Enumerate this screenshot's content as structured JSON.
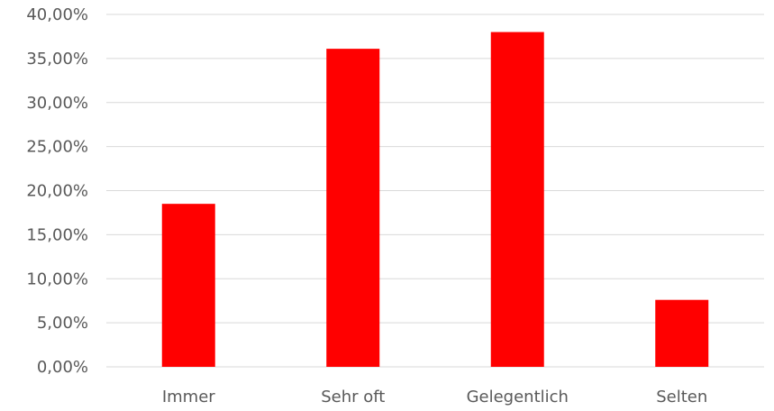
{
  "chart_data": {
    "type": "bar",
    "title": "",
    "xlabel": "",
    "ylabel": "",
    "categories": [
      "Immer",
      "Sehr oft",
      "Gelegentlich",
      "Selten"
    ],
    "values": [
      18.5,
      36.1,
      38.0,
      7.6
    ],
    "ylim": [
      0,
      40
    ],
    "yticks": [
      0,
      5,
      10,
      15,
      20,
      25,
      30,
      35,
      40
    ],
    "ytick_labels": [
      "0,00%",
      "5,00%",
      "10,00%",
      "15,00%",
      "20,00%",
      "25,00%",
      "30,00%",
      "35,00%",
      "40,00%"
    ],
    "grid": true,
    "legend": "none",
    "colors": {
      "bar": "#ff0000",
      "grid": "#d9d9d9",
      "text": "#595959"
    }
  }
}
